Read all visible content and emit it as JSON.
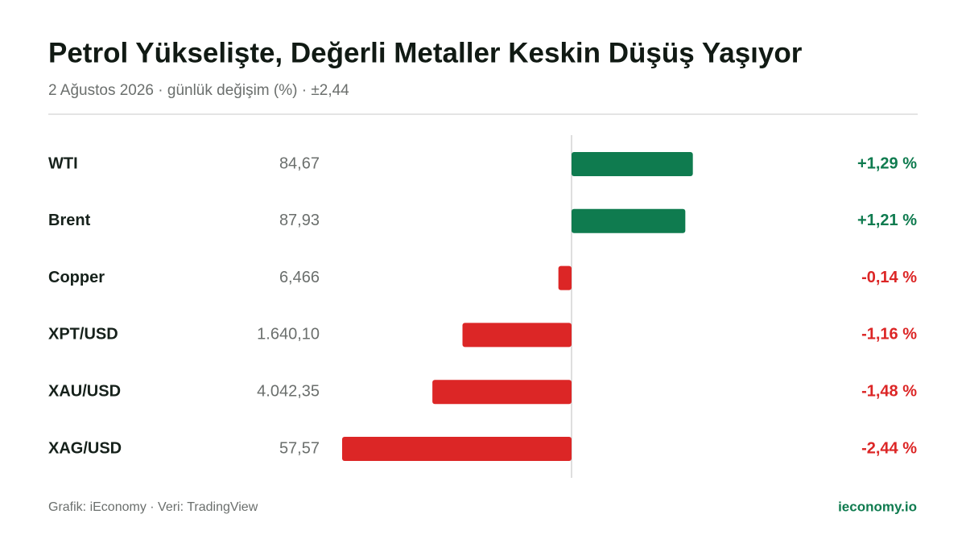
{
  "chart_data": {
    "type": "bar",
    "title": "Petrol Yükselişte, Değerli Metaller Keskin Düşüş Yaşıyor",
    "subtitle": "2 Ağustos 2026 · günlük değişim (%) · ±2,44",
    "categories": [
      "WTI",
      "Brent",
      "Copper",
      "XPT/USD",
      "XAU/USD",
      "XAG/USD"
    ],
    "prices": [
      "84,67",
      "87,93",
      "6,466",
      "1.640,10",
      "4.042,35",
      "57,57"
    ],
    "values": [
      1.29,
      1.21,
      -0.14,
      -1.16,
      -1.48,
      -2.44
    ],
    "value_labels": [
      "+1,29 %",
      "+1,21 %",
      "-0,14 %",
      "-1,16 %",
      "-1,48 %",
      "-2,44 %"
    ],
    "xlim": [
      -2.44,
      2.44
    ],
    "positive_color": "#0f7b4f",
    "negative_color": "#dc2626",
    "source": "Grafik: iEconomy · Veri: TradingView",
    "brand": "ieconomy.io"
  }
}
